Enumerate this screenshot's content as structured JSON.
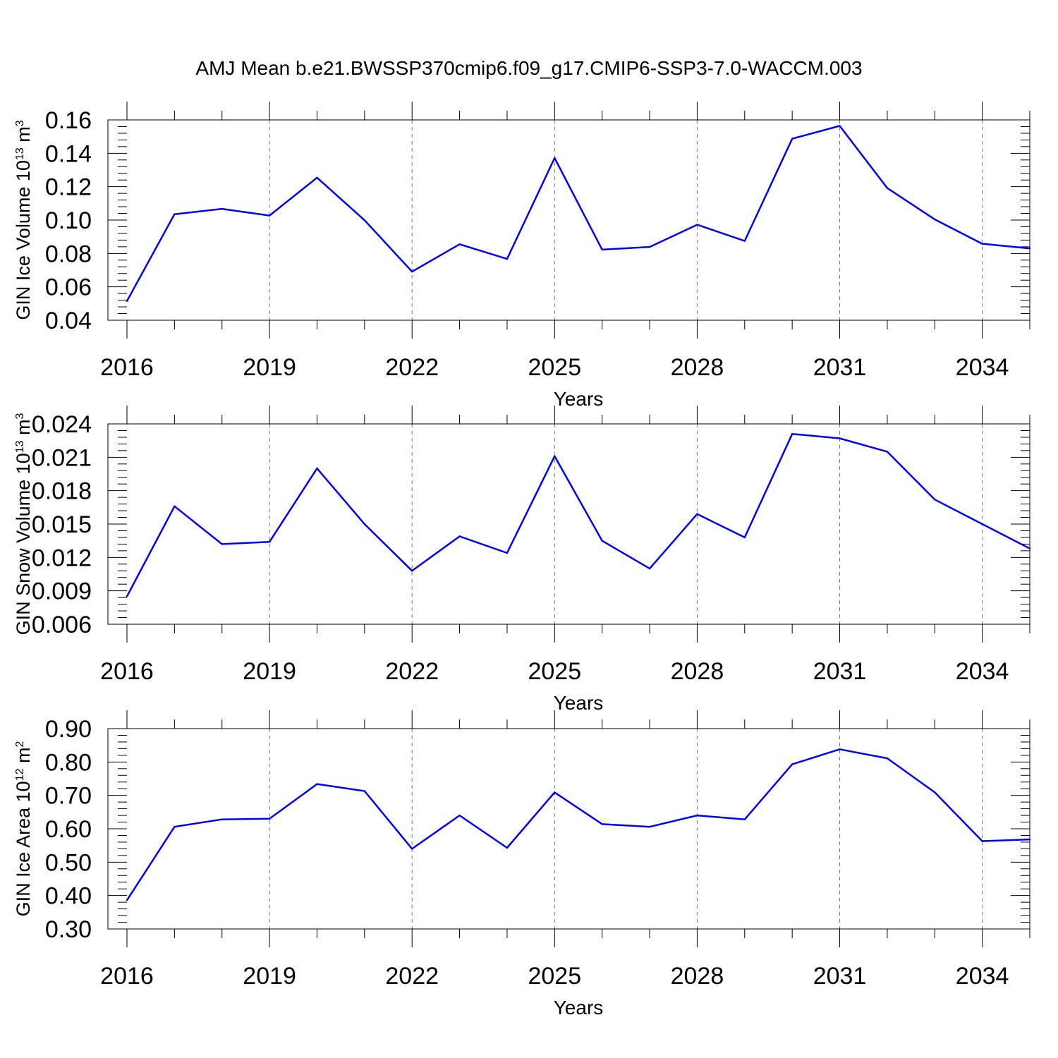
{
  "figure": {
    "title": "AMJ Mean b.e21.BWSSP370cmip6.f09_g17.CMIP6-SSP3-7.0-WACCM.003",
    "line_color": "#0000ff",
    "grid": "vertical dashed at major x ticks"
  },
  "chart_data": [
    {
      "type": "line",
      "xlabel": "Years",
      "ylabel": {
        "text": "GIN Ice Volume 10",
        "exp": "13",
        "unit": " m",
        "unit_exp": "3"
      },
      "xlim": [
        2016,
        2035
      ],
      "xticks": [
        2016,
        2019,
        2022,
        2025,
        2028,
        2031,
        2034
      ],
      "xtick_labels": [
        "2016",
        "2019",
        "2022",
        "2025",
        "2028",
        "2031",
        "2034"
      ],
      "ylim": [
        0.04,
        0.16
      ],
      "yticks": [
        0.04,
        0.06,
        0.08,
        0.1,
        0.12,
        0.14,
        0.16
      ],
      "ytick_labels": [
        "0.04",
        "0.06",
        "0.08",
        "0.10",
        "0.12",
        "0.14",
        "0.16"
      ],
      "x": [
        2016,
        2017,
        2018,
        2019,
        2020,
        2021,
        2022,
        2023,
        2024,
        2025,
        2026,
        2027,
        2028,
        2029,
        2030,
        2031,
        2032,
        2033,
        2034,
        2035
      ],
      "values": [
        0.0515,
        0.1035,
        0.1067,
        0.1027,
        0.1254,
        0.0999,
        0.0691,
        0.0855,
        0.0767,
        0.1372,
        0.0823,
        0.0839,
        0.0972,
        0.0875,
        0.1487,
        0.1564,
        0.1192,
        0.1004,
        0.0858,
        0.083
      ]
    },
    {
      "type": "line",
      "xlabel": "Years",
      "ylabel": {
        "text": "GIN Snow Volume 10",
        "exp": "13",
        "unit": " m",
        "unit_exp": "3"
      },
      "xlim": [
        2016,
        2035
      ],
      "xticks": [
        2016,
        2019,
        2022,
        2025,
        2028,
        2031,
        2034
      ],
      "xtick_labels": [
        "2016",
        "2019",
        "2022",
        "2025",
        "2028",
        "2031",
        "2034"
      ],
      "ylim": [
        0.006,
        0.024
      ],
      "yticks": [
        0.006,
        0.009,
        0.012,
        0.015,
        0.018,
        0.021,
        0.024
      ],
      "ytick_labels": [
        "0.006",
        "0.009",
        "0.012",
        "0.015",
        "0.018",
        "0.021",
        "0.024"
      ],
      "x": [
        2016,
        2017,
        2018,
        2019,
        2020,
        2021,
        2022,
        2023,
        2024,
        2025,
        2026,
        2027,
        2028,
        2029,
        2030,
        2031,
        2032,
        2033,
        2034,
        2035
      ],
      "values": [
        0.0085,
        0.0166,
        0.0132,
        0.0134,
        0.02,
        0.015,
        0.0108,
        0.0139,
        0.0124,
        0.0211,
        0.0135,
        0.011,
        0.0159,
        0.0138,
        0.0231,
        0.0227,
        0.0215,
        0.0172,
        0.015,
        0.0128
      ]
    },
    {
      "type": "line",
      "xlabel": "Years",
      "ylabel": {
        "text": "GIN Ice Area 10",
        "exp": "12",
        "unit": " m",
        "unit_exp": "2"
      },
      "xlim": [
        2016,
        2035
      ],
      "xticks": [
        2016,
        2019,
        2022,
        2025,
        2028,
        2031,
        2034
      ],
      "xtick_labels": [
        "2016",
        "2019",
        "2022",
        "2025",
        "2028",
        "2031",
        "2034"
      ],
      "ylim": [
        0.3,
        0.9
      ],
      "yticks": [
        0.3,
        0.4,
        0.5,
        0.6,
        0.7,
        0.8,
        0.9
      ],
      "ytick_labels": [
        "0.30",
        "0.40",
        "0.50",
        "0.60",
        "0.70",
        "0.80",
        "0.90"
      ],
      "x": [
        2016,
        2017,
        2018,
        2019,
        2020,
        2021,
        2022,
        2023,
        2024,
        2025,
        2026,
        2027,
        2028,
        2029,
        2030,
        2031,
        2032,
        2033,
        2034,
        2035
      ],
      "values": [
        0.386,
        0.606,
        0.628,
        0.63,
        0.734,
        0.713,
        0.54,
        0.64,
        0.543,
        0.709,
        0.614,
        0.606,
        0.64,
        0.628,
        0.793,
        0.838,
        0.811,
        0.709,
        0.563,
        0.568
      ]
    }
  ]
}
